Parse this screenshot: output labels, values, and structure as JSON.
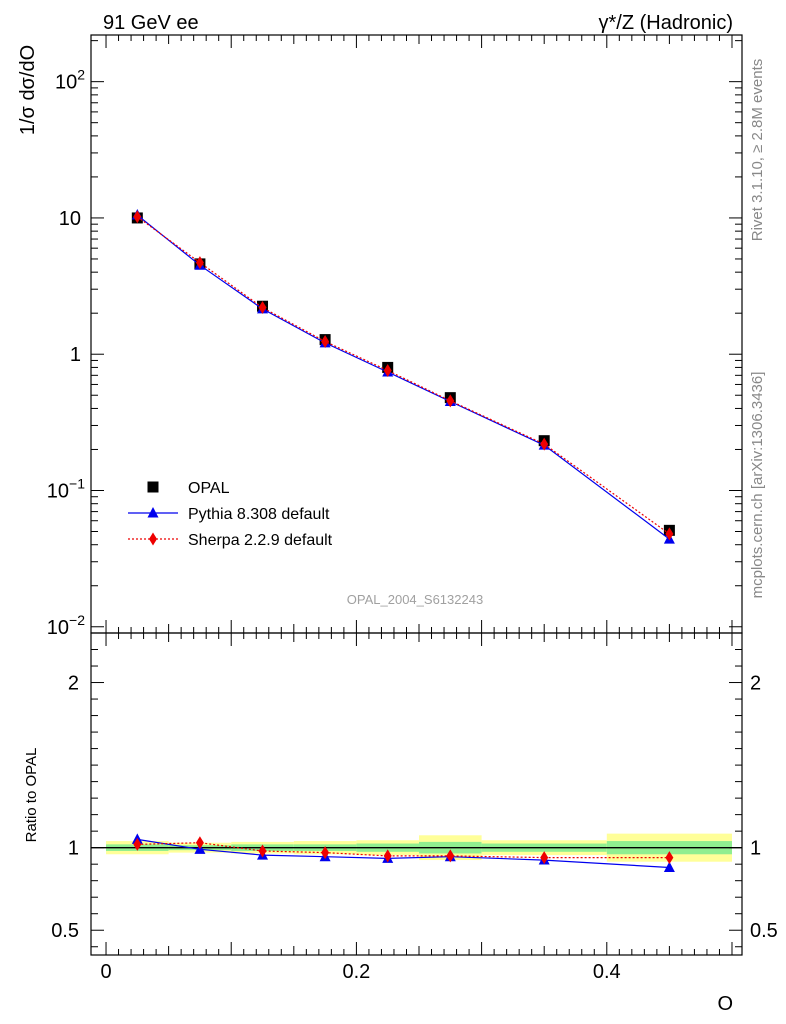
{
  "header": {
    "left_label": "91 GeV ee",
    "right_label": "γ*/Z (Hadronic)"
  },
  "side_labels": {
    "rivet": "Rivet 3.1.10, ≥ 2.8M events",
    "mcplots": "mcplots.cern.ch [arXiv:1306.3436]"
  },
  "watermark": "OPAL_2004_S6132243",
  "chart_data": [
    {
      "type": "scatter",
      "panel": "main",
      "ylabel": "1/σ dσ/dO",
      "yscale": "log",
      "ylim": [
        0.009,
        220
      ],
      "xlim": [
        -0.012,
        0.508
      ],
      "y_ticks": [
        {
          "value": 0.01,
          "base": "10",
          "exp": "−2"
        },
        {
          "value": 0.1,
          "base": "10",
          "exp": "−1"
        },
        {
          "value": 1,
          "base": "1",
          "exp": ""
        },
        {
          "value": 10,
          "base": "10",
          "exp": ""
        },
        {
          "value": 100,
          "base": "10",
          "exp": "2"
        }
      ],
      "legend_position": "bottom-left",
      "series": [
        {
          "name": "OPAL",
          "style": "data",
          "color": "#000000",
          "marker": "square",
          "x": [
            0.025,
            0.075,
            0.125,
            0.175,
            0.225,
            0.275,
            0.35,
            0.45
          ],
          "y": [
            10.0,
            4.6,
            2.25,
            1.28,
            0.8,
            0.48,
            0.232,
            0.051
          ]
        },
        {
          "name": "Pythia 8.308 default",
          "style": "solid",
          "color": "#0000ee",
          "marker": "triangle",
          "x": [
            0.025,
            0.075,
            0.125,
            0.175,
            0.225,
            0.275,
            0.35,
            0.45
          ],
          "y": [
            10.5,
            4.5,
            2.15,
            1.21,
            0.74,
            0.45,
            0.215,
            0.044
          ]
        },
        {
          "name": "Sherpa 2.2.9 default",
          "style": "dotted",
          "color": "#ee0000",
          "marker": "diamond",
          "x": [
            0.025,
            0.075,
            0.125,
            0.175,
            0.225,
            0.275,
            0.35,
            0.45
          ],
          "y": [
            10.2,
            4.7,
            2.2,
            1.24,
            0.76,
            0.455,
            0.219,
            0.048
          ]
        }
      ]
    },
    {
      "type": "scatter",
      "panel": "ratio",
      "ylabel": "Ratio to OPAL",
      "xlabel": "O",
      "ylim": [
        0.35,
        2.3
      ],
      "xlim": [
        -0.012,
        0.508
      ],
      "y_ticks": [
        {
          "value": 0.5,
          "label": "0.5"
        },
        {
          "value": 1,
          "label": "1"
        },
        {
          "value": 2,
          "label": "2"
        }
      ],
      "x_ticks": [
        {
          "value": 0,
          "label": "0"
        },
        {
          "value": 0.2,
          "label": "0.2"
        },
        {
          "value": 0.4,
          "label": "0.4"
        }
      ],
      "bands": {
        "bin_edges": [
          0.0,
          0.05,
          0.1,
          0.15,
          0.2,
          0.25,
          0.3,
          0.4,
          0.5
        ],
        "inner": [
          0.02,
          0.015,
          0.02,
          0.02,
          0.025,
          0.035,
          0.025,
          0.04
        ],
        "outer": [
          0.04,
          0.03,
          0.035,
          0.04,
          0.045,
          0.075,
          0.045,
          0.085
        ],
        "inner_color": "#90ee90",
        "outer_color": "#ffff99"
      },
      "series": [
        {
          "name": "Pythia 8.308 default",
          "color": "#0000ee",
          "marker": "triangle",
          "x": [
            0.025,
            0.075,
            0.125,
            0.175,
            0.225,
            0.275,
            0.35,
            0.45
          ],
          "y": [
            1.05,
            0.99,
            0.955,
            0.945,
            0.935,
            0.945,
            0.925,
            0.88
          ]
        },
        {
          "name": "Sherpa 2.2.9 default",
          "color": "#ee0000",
          "marker": "diamond",
          "x": [
            0.025,
            0.075,
            0.125,
            0.175,
            0.225,
            0.275,
            0.35,
            0.45
          ],
          "y": [
            1.02,
            1.03,
            0.98,
            0.97,
            0.95,
            0.95,
            0.94,
            0.94
          ]
        }
      ]
    }
  ]
}
